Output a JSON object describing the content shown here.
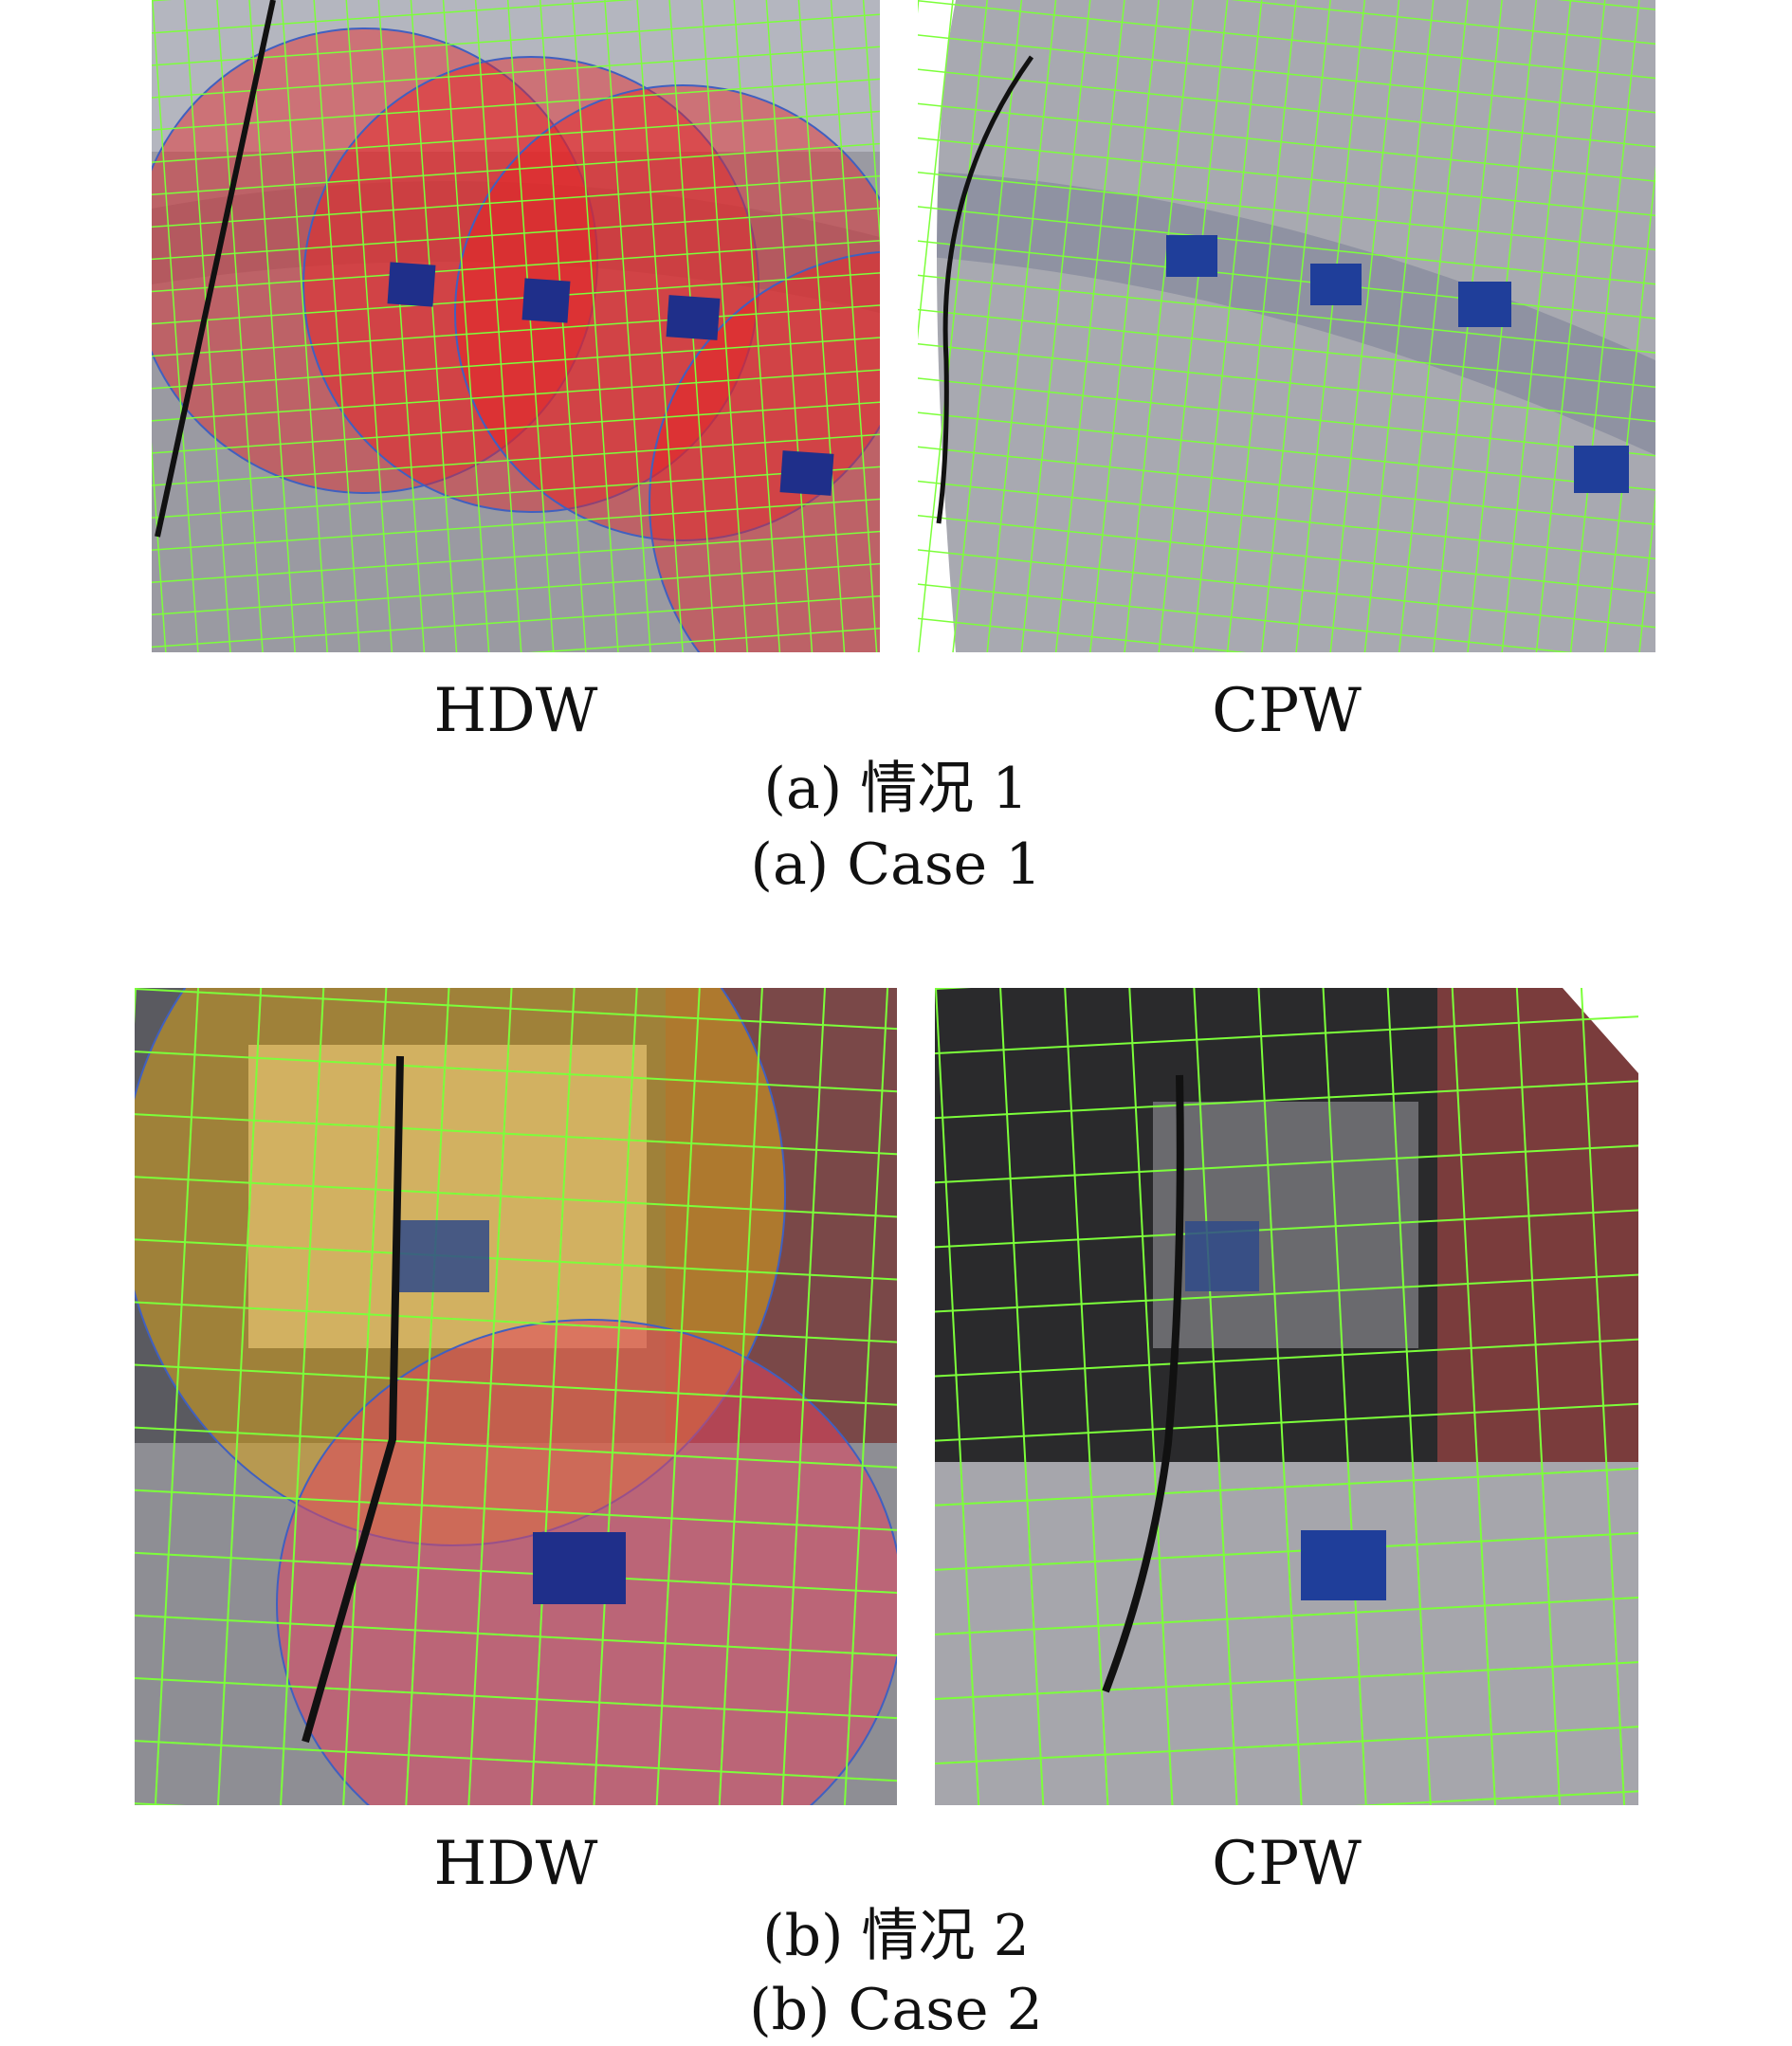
{
  "figure": {
    "subfigures": [
      {
        "id": "a",
        "caption_cn": "(a) 情况 1",
        "caption_en": "(a) Case 1",
        "panels": [
          {
            "label": "HDW"
          },
          {
            "label": "CPW"
          }
        ]
      },
      {
        "id": "b",
        "caption_cn": "(b) 情况 2",
        "caption_en": "(b) Case 2",
        "panels": [
          {
            "label": "HDW"
          },
          {
            "label": "CPW"
          }
        ]
      }
    ],
    "colors": {
      "grid": "#7CFF3A",
      "circle_red": "#E8201E",
      "circle_yellow": "#D9A21A",
      "circle_pink": "#E0435E",
      "marker": "#1F2F8A",
      "seam": "#111111"
    }
  }
}
